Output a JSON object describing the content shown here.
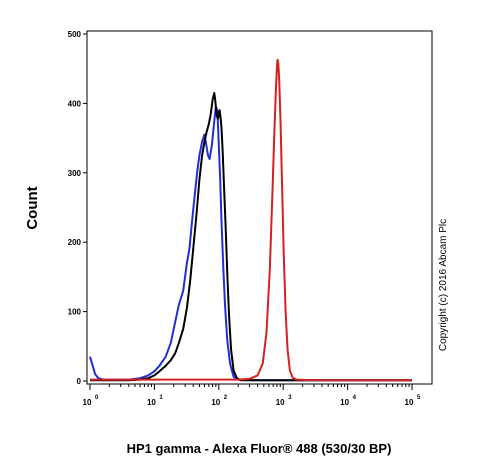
{
  "chart_data": {
    "type": "line",
    "title": "",
    "xlabel": "HP1 gamma - Alexa Fluor® 488 (530/30 BP)",
    "ylabel": "Count",
    "x_scale": "log",
    "xlim": [
      1,
      100000
    ],
    "ylim": [
      0,
      500
    ],
    "y_ticks": [
      0,
      100,
      200,
      300,
      400,
      500
    ],
    "x_ticks": [
      {
        "value": 1,
        "base": "10",
        "exp": "0"
      },
      {
        "value": 10,
        "base": "10",
        "exp": "1"
      },
      {
        "value": 100,
        "base": "10",
        "exp": "2"
      },
      {
        "value": 1000,
        "base": "10",
        "exp": "3"
      },
      {
        "value": 10000,
        "base": "10",
        "exp": "4"
      },
      {
        "value": 100000,
        "base": "10",
        "exp": "5"
      }
    ],
    "annotation": "Copyright (c) 2016 Abcam Plc",
    "grid": false,
    "legend": "none",
    "series": [
      {
        "color": "#1f2fd6",
        "points": [
          [
            1,
            35
          ],
          [
            1.1,
            22
          ],
          [
            1.2,
            10
          ],
          [
            1.35,
            4
          ],
          [
            1.6,
            2
          ],
          [
            2.5,
            2
          ],
          [
            4,
            2
          ],
          [
            6,
            4
          ],
          [
            8,
            8
          ],
          [
            10,
            14
          ],
          [
            12,
            22
          ],
          [
            15,
            35
          ],
          [
            18,
            55
          ],
          [
            21,
            85
          ],
          [
            24,
            110
          ],
          [
            28,
            130
          ],
          [
            32,
            170
          ],
          [
            35,
            190
          ],
          [
            38,
            225
          ],
          [
            42,
            265
          ],
          [
            46,
            300
          ],
          [
            50,
            325
          ],
          [
            55,
            345
          ],
          [
            60,
            355
          ],
          [
            64,
            340
          ],
          [
            68,
            325
          ],
          [
            72,
            320
          ],
          [
            78,
            340
          ],
          [
            85,
            375
          ],
          [
            90,
            395
          ],
          [
            95,
            390
          ],
          [
            100,
            340
          ],
          [
            105,
            290
          ],
          [
            110,
            230
          ],
          [
            118,
            160
          ],
          [
            125,
            110
          ],
          [
            135,
            60
          ],
          [
            150,
            25
          ],
          [
            170,
            6
          ],
          [
            200,
            2
          ],
          [
            400,
            1
          ],
          [
            100000,
            1
          ]
        ]
      },
      {
        "color": "#000000",
        "points": [
          [
            1,
            1
          ],
          [
            2,
            1
          ],
          [
            4,
            1
          ],
          [
            6,
            2
          ],
          [
            8,
            4
          ],
          [
            10,
            8
          ],
          [
            12,
            14
          ],
          [
            15,
            22
          ],
          [
            18,
            30
          ],
          [
            21,
            40
          ],
          [
            24,
            55
          ],
          [
            28,
            75
          ],
          [
            32,
            105
          ],
          [
            36,
            145
          ],
          [
            40,
            190
          ],
          [
            45,
            240
          ],
          [
            50,
            290
          ],
          [
            55,
            325
          ],
          [
            60,
            345
          ],
          [
            65,
            360
          ],
          [
            70,
            370
          ],
          [
            75,
            385
          ],
          [
            80,
            405
          ],
          [
            85,
            415
          ],
          [
            88,
            405
          ],
          [
            92,
            385
          ],
          [
            96,
            378
          ],
          [
            100,
            382
          ],
          [
            103,
            390
          ],
          [
            106,
            382
          ],
          [
            110,
            365
          ],
          [
            115,
            330
          ],
          [
            120,
            285
          ],
          [
            128,
            220
          ],
          [
            136,
            150
          ],
          [
            145,
            90
          ],
          [
            155,
            45
          ],
          [
            170,
            15
          ],
          [
            190,
            4
          ],
          [
            220,
            1
          ],
          [
            100000,
            1
          ]
        ]
      },
      {
        "color": "#d42020",
        "points": [
          [
            1,
            2
          ],
          [
            100,
            2
          ],
          [
            200,
            2
          ],
          [
            300,
            3
          ],
          [
            400,
            8
          ],
          [
            480,
            25
          ],
          [
            550,
            70
          ],
          [
            620,
            160
          ],
          [
            680,
            270
          ],
          [
            730,
            360
          ],
          [
            770,
            420
          ],
          [
            800,
            455
          ],
          [
            820,
            463
          ],
          [
            840,
            458
          ],
          [
            870,
            430
          ],
          [
            910,
            370
          ],
          [
            960,
            280
          ],
          [
            1020,
            180
          ],
          [
            1090,
            100
          ],
          [
            1170,
            45
          ],
          [
            1270,
            15
          ],
          [
            1400,
            5
          ],
          [
            1600,
            2
          ],
          [
            3000,
            1
          ],
          [
            100000,
            1
          ]
        ]
      }
    ]
  }
}
